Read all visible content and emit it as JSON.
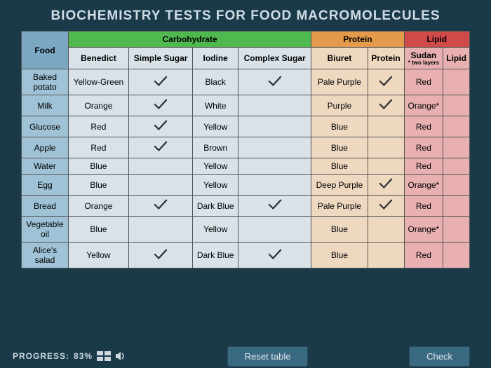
{
  "title": "BIOCHEMISTRY TESTS FOR FOOD MACROMOLECULES",
  "headers": {
    "food": "Food",
    "carb": "Carbohydrate",
    "prot": "Protein",
    "lipid": "Lipid",
    "sub": {
      "benedict": "Benedict",
      "simple": "Simple Sugar",
      "iodine": "Iodine",
      "complex": "Complex Sugar",
      "biuret": "Biuret",
      "protein": "Protein",
      "sudan": "Sudan",
      "lipid": "Lipid",
      "sudan_note": "* two layers"
    }
  },
  "rows": [
    {
      "food": "Baked potato",
      "benedict": "Yellow-Green",
      "simple": "✓",
      "iodine": "Black",
      "complex": "✓",
      "biuret": "Pale Purple",
      "protein": "✓",
      "sudan": "Red",
      "lipid": ""
    },
    {
      "food": "Milk",
      "benedict": "Orange",
      "simple": "✓",
      "iodine": "White",
      "complex": "",
      "biuret": "Purple",
      "protein": "✓",
      "sudan": "Orange*",
      "lipid": ""
    },
    {
      "food": "Glucose",
      "benedict": "Red",
      "simple": "✓",
      "iodine": "Yellow",
      "complex": "",
      "biuret": "Blue",
      "protein": "",
      "sudan": "Red",
      "lipid": ""
    },
    {
      "food": "Apple",
      "benedict": "Red",
      "simple": "✓",
      "iodine": "Brown",
      "complex": "",
      "biuret": "Blue",
      "protein": "",
      "sudan": "Red",
      "lipid": ""
    },
    {
      "food": "Water",
      "benedict": "Blue",
      "simple": "",
      "iodine": "Yellow",
      "complex": "",
      "biuret": "Blue",
      "protein": "",
      "sudan": "Red",
      "lipid": ""
    },
    {
      "food": "Egg",
      "benedict": "Blue",
      "simple": "",
      "iodine": "Yellow",
      "complex": "",
      "biuret": "Deep Purple",
      "protein": "✓",
      "sudan": "Orange*",
      "lipid": ""
    },
    {
      "food": "Bread",
      "benedict": "Orange",
      "simple": "✓",
      "iodine": "Dark Blue",
      "complex": "✓",
      "biuret": "Pale Purple",
      "protein": "✓",
      "sudan": "Red",
      "lipid": ""
    },
    {
      "food": "Vegetable oil",
      "benedict": "Blue",
      "simple": "",
      "iodine": "Yellow",
      "complex": "",
      "biuret": "Blue",
      "protein": "",
      "sudan": "Orange*",
      "lipid": ""
    },
    {
      "food": "Alice's salad",
      "benedict": "Yellow",
      "simple": "✓",
      "iodine": "Dark Blue",
      "complex": "✓",
      "biuret": "Blue",
      "protein": "",
      "sudan": "Red",
      "lipid": ""
    }
  ],
  "footer": {
    "progress_label": "PROGRESS:",
    "progress_value": "83%",
    "reset": "Reset table",
    "check": "Check"
  },
  "colors": {
    "page_bg": "#1a3a4a",
    "food_header": "#7ba7c2",
    "carb_header": "#4fb84f",
    "prot_header": "#e39a4a",
    "lipid_header": "#d14a4a",
    "food_col": "#9fc2d6",
    "cell_bg": "#d8e2e8",
    "prot_cell": "#eed8c0",
    "lipid_cell": "#e8b0b0"
  }
}
